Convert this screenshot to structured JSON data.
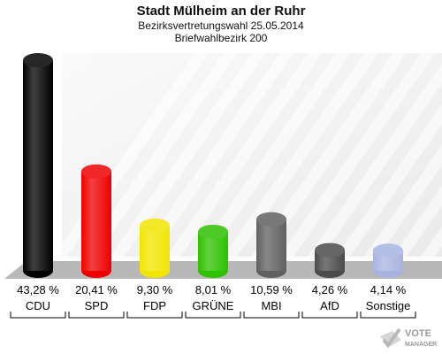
{
  "chart_data": {
    "type": "bar",
    "title": "Stadt Mülheim an der Ruhr",
    "subtitle": "Bezirksvertretungswahl 25.05.2014",
    "subtitle2": "Briefwahlbezirk 200",
    "categories": [
      "CDU",
      "SPD",
      "FDP",
      "GRÜNE",
      "MBI",
      "AfD",
      "Sonstige"
    ],
    "values": [
      43.28,
      20.41,
      9.3,
      8.01,
      10.59,
      4.26,
      4.14
    ],
    "value_labels": [
      "43,28 %",
      "20,41 %",
      "9,30 %",
      "8,01 %",
      "10,59 %",
      "4,26 %",
      "4,14 %"
    ],
    "colors": [
      "#000000",
      "#ee0000",
      "#f2e500",
      "#2ec100",
      "#606060",
      "#4b4b4b",
      "#a8b4e0"
    ],
    "ylim": [
      0,
      45
    ],
    "grid": false,
    "legend": "none"
  },
  "logo": {
    "line1": "VOTE",
    "line2": "MANAGER"
  }
}
